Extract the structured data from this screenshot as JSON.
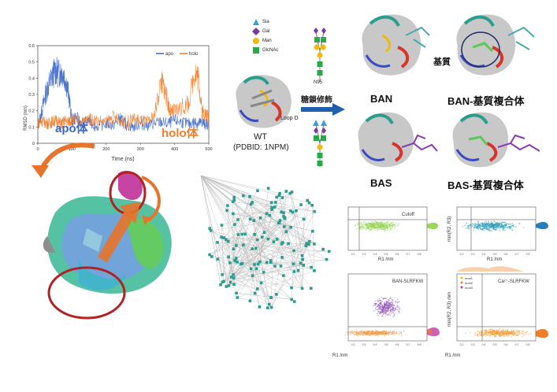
{
  "rmsd_panel": {
    "ylabel": "RMSD (nm)",
    "xlabel": "Time (ns)",
    "legend": [
      "apo",
      "holo"
    ],
    "label_apo": "apo体",
    "label_holo": "holo体",
    "colors": {
      "apo": "#3a66c4",
      "holo": "#ef7d2a"
    }
  },
  "chart_data": {
    "type": "line",
    "title": "",
    "xlabel": "Time (ns)",
    "ylabel": "RMSD (nm)",
    "xlim": [
      0,
      500
    ],
    "ylim": [
      0,
      0.6
    ],
    "xticks": [
      "0",
      "100",
      "200",
      "300",
      "400",
      "500"
    ],
    "yticks": [
      "0",
      "0.1",
      "0.2",
      "0.3",
      "0.4",
      "0.5",
      "0.6"
    ],
    "legend_position": "top-right",
    "series": [
      {
        "name": "apo",
        "x": [
          0,
          10,
          20,
          30,
          40,
          50,
          60,
          70,
          80,
          90,
          100,
          110,
          130,
          150,
          170,
          200,
          220,
          240,
          250,
          260,
          280,
          300,
          320,
          340,
          360,
          380,
          400,
          420,
          440,
          460,
          470,
          480,
          490,
          500
        ],
        "y": [
          0.1,
          0.18,
          0.28,
          0.35,
          0.4,
          0.45,
          0.43,
          0.44,
          0.4,
          0.3,
          0.13,
          0.16,
          0.12,
          0.14,
          0.1,
          0.12,
          0.11,
          0.15,
          0.13,
          0.11,
          0.1,
          0.12,
          0.11,
          0.12,
          0.13,
          0.12,
          0.14,
          0.13,
          0.12,
          0.13,
          0.12,
          0.13,
          0.12,
          0.12
        ]
      },
      {
        "name": "holo",
        "x": [
          0,
          10,
          20,
          30,
          40,
          50,
          60,
          70,
          80,
          90,
          100,
          110,
          130,
          150,
          170,
          200,
          220,
          240,
          260,
          280,
          300,
          320,
          340,
          360,
          370,
          380,
          390,
          400,
          420,
          440,
          460,
          470,
          480,
          490,
          500
        ],
        "y": [
          0.12,
          0.14,
          0.13,
          0.12,
          0.13,
          0.14,
          0.13,
          0.12,
          0.14,
          0.13,
          0.15,
          0.14,
          0.13,
          0.15,
          0.14,
          0.13,
          0.16,
          0.14,
          0.13,
          0.15,
          0.14,
          0.13,
          0.16,
          0.38,
          0.34,
          0.25,
          0.18,
          0.2,
          0.22,
          0.24,
          0.45,
          0.4,
          0.2,
          0.18,
          0.16
        ]
      }
    ]
  },
  "schematic": {
    "legend": [
      {
        "name": "Sia",
        "shape": "triangle",
        "color": "#3aa0dc"
      },
      {
        "name": "Gal",
        "shape": "diamond",
        "color": "#7b3a9c"
      },
      {
        "name": "Man",
        "shape": "circle",
        "color": "#f2b90c"
      },
      {
        "name": "GlcNAc",
        "shape": "square",
        "color": "#2aa84a"
      }
    ],
    "site_label": "N95",
    "arrow_label": "糖鎖修飾",
    "wt_label": "WT",
    "wt_sub": "(PDBID: 1NPM)",
    "loop_label": "Loop D",
    "ban_label": "BAN",
    "ban_complex_label": "BAN-基質複合体",
    "substrate_label": "基質",
    "bas_label": "BAS",
    "bas_complex_label": "BAS-基質複合体"
  },
  "scatter_panels": [
    {
      "annotation": "Cutoff",
      "xlabel": "R1 /nm",
      "ylabel": "",
      "xticks": [
        "0.2",
        "0.3",
        "0.4",
        "0.5",
        "0.6",
        "0.7",
        "0.8"
      ]
    },
    {
      "annotation": "",
      "xlabel": "R1 /nm",
      "ylabel": "min(R2, R3)",
      "xticks": [
        "0.2",
        "0.3",
        "0.4",
        "0.5",
        "0.6",
        "0.7",
        "0.8"
      ]
    },
    {
      "annotation": "BAN-SLRFKW",
      "xlabel": "R1 /nm",
      "ylabel": "",
      "xticks": [
        "0.2",
        "0.3",
        "0.4",
        "0.5",
        "0.6",
        "0.7",
        "0.8"
      ]
    },
    {
      "annotation": "Ca²⁺-SLRFKW",
      "xlabel": "R1 /nm",
      "ylabel": "min(R2, R3) /nm",
      "xticks": [
        "0.2",
        "0.3",
        "0.4",
        "0.5",
        "0.6",
        "0.7",
        "0.8"
      ],
      "legend": [
        "mod1",
        "mod2",
        "mod3"
      ]
    }
  ],
  "colors": {
    "apo": "#3a66c4",
    "holo": "#ef7d2a",
    "teal": "#2a9d8f",
    "red_circle": "#b22222"
  }
}
